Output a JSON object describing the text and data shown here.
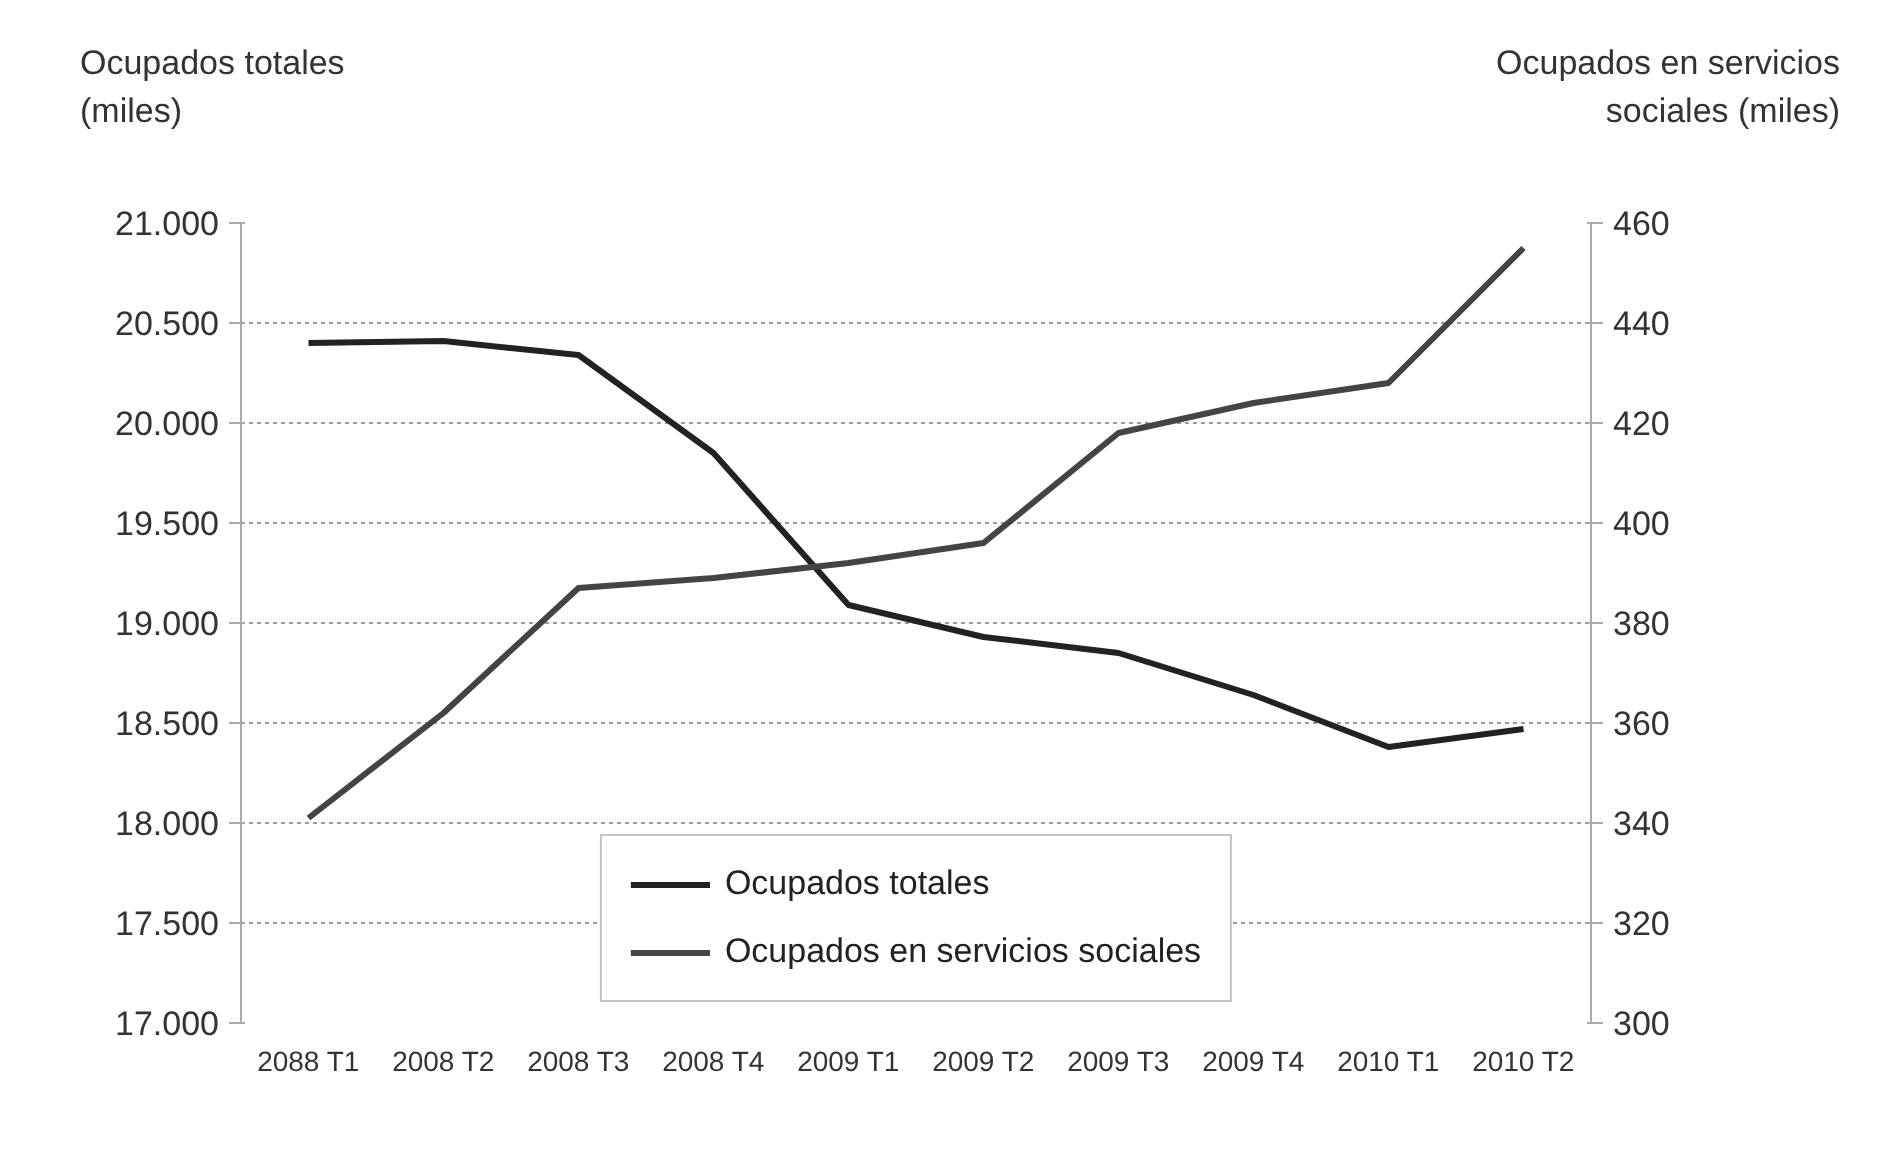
{
  "chart_data": {
    "type": "line",
    "ylabel": "Ocupados totales\n(miles)",
    "y2label": "Ocupados en servicios\nsociales (miles)",
    "categories": [
      "2088 T1",
      "2008 T2",
      "2008 T3",
      "2008 T4",
      "2009 T1",
      "2009 T2",
      "2009 T3",
      "2009 T4",
      "2010 T1",
      "2010 T2"
    ],
    "series": [
      {
        "name": "Ocupados totales",
        "color": "#222222",
        "values": [
          20400,
          20410,
          20340,
          19850,
          19090,
          18930,
          18850,
          18640,
          18380,
          18470
        ]
      },
      {
        "name": "Ocupados en servicios sociales",
        "color": "#444444",
        "axis": "y2",
        "values": [
          341,
          362,
          387,
          389,
          392,
          396,
          418,
          424,
          428,
          455
        ]
      }
    ],
    "ylim": [
      17000,
      21000
    ],
    "yticks": [
      {
        "value": 17000,
        "label": "17.000"
      },
      {
        "value": 17500,
        "label": "17.500"
      },
      {
        "value": 18000,
        "label": "18.000"
      },
      {
        "value": 18500,
        "label": "18.500"
      },
      {
        "value": 19000,
        "label": "19.000"
      },
      {
        "value": 19500,
        "label": "19.500"
      },
      {
        "value": 20000,
        "label": "20.000"
      },
      {
        "value": 20500,
        "label": "20.500"
      },
      {
        "value": 21000,
        "label": "21.000"
      }
    ],
    "y2lim": [
      300,
      460
    ],
    "y2ticks": [
      300,
      320,
      340,
      360,
      380,
      400,
      420,
      440,
      460
    ],
    "grid": "y",
    "legend": "bottom",
    "line_style": "solid"
  }
}
